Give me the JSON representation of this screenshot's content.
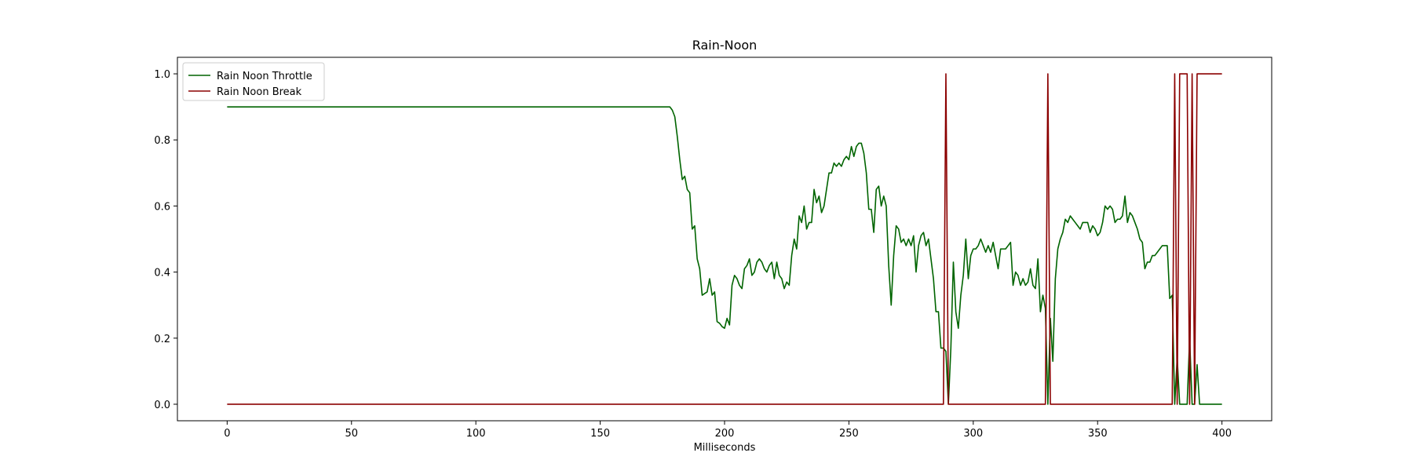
{
  "chart_data": {
    "type": "line",
    "title": "Rain-Noon",
    "xlabel": "Milliseconds",
    "ylabel": "",
    "xlim": [
      -20,
      420
    ],
    "ylim": [
      -0.05,
      1.05
    ],
    "xticks": [
      0,
      50,
      100,
      150,
      200,
      250,
      300,
      350,
      400
    ],
    "yticks": [
      0.0,
      0.2,
      0.4,
      0.6,
      0.8,
      1.0
    ],
    "xtick_labels": [
      "0",
      "50",
      "100",
      "150",
      "200",
      "250",
      "300",
      "350",
      "400"
    ],
    "ytick_labels": [
      "0.0",
      "0.2",
      "0.4",
      "0.6",
      "0.8",
      "1.0"
    ],
    "grid": false,
    "legend_position": "top-left",
    "series": [
      {
        "name": "Rain Noon Throttle",
        "color": "#006400",
        "points": [
          [
            0,
            0.9
          ],
          [
            50,
            0.9
          ],
          [
            100,
            0.9
          ],
          [
            150,
            0.9
          ],
          [
            175,
            0.9
          ],
          [
            178,
            0.9
          ],
          [
            179,
            0.89
          ],
          [
            180,
            0.87
          ],
          [
            181,
            0.81
          ],
          [
            182,
            0.74
          ],
          [
            183,
            0.68
          ],
          [
            184,
            0.69
          ],
          [
            185,
            0.65
          ],
          [
            186,
            0.64
          ],
          [
            187,
            0.53
          ],
          [
            188,
            0.54
          ],
          [
            189,
            0.44
          ],
          [
            190,
            0.41
          ],
          [
            191,
            0.33
          ],
          [
            192,
            0.335
          ],
          [
            193,
            0.34
          ],
          [
            194,
            0.38
          ],
          [
            195,
            0.33
          ],
          [
            196,
            0.34
          ],
          [
            197,
            0.25
          ],
          [
            198,
            0.245
          ],
          [
            199,
            0.235
          ],
          [
            200,
            0.23
          ],
          [
            201,
            0.26
          ],
          [
            202,
            0.24
          ],
          [
            203,
            0.36
          ],
          [
            204,
            0.39
          ],
          [
            205,
            0.38
          ],
          [
            206,
            0.36
          ],
          [
            207,
            0.35
          ],
          [
            208,
            0.41
          ],
          [
            209,
            0.42
          ],
          [
            210,
            0.44
          ],
          [
            211,
            0.39
          ],
          [
            212,
            0.4
          ],
          [
            213,
            0.43
          ],
          [
            214,
            0.44
          ],
          [
            215,
            0.43
          ],
          [
            216,
            0.41
          ],
          [
            217,
            0.4
          ],
          [
            218,
            0.42
          ],
          [
            219,
            0.43
          ],
          [
            220,
            0.38
          ],
          [
            221,
            0.43
          ],
          [
            222,
            0.39
          ],
          [
            223,
            0.38
          ],
          [
            224,
            0.35
          ],
          [
            225,
            0.37
          ],
          [
            226,
            0.36
          ],
          [
            227,
            0.45
          ],
          [
            228,
            0.5
          ],
          [
            229,
            0.47
          ],
          [
            230,
            0.57
          ],
          [
            231,
            0.55
          ],
          [
            232,
            0.6
          ],
          [
            233,
            0.53
          ],
          [
            234,
            0.55
          ],
          [
            235,
            0.55
          ],
          [
            236,
            0.65
          ],
          [
            237,
            0.61
          ],
          [
            238,
            0.63
          ],
          [
            239,
            0.58
          ],
          [
            240,
            0.6
          ],
          [
            241,
            0.65
          ],
          [
            242,
            0.7
          ],
          [
            243,
            0.7
          ],
          [
            244,
            0.73
          ],
          [
            245,
            0.72
          ],
          [
            246,
            0.73
          ],
          [
            247,
            0.72
          ],
          [
            248,
            0.74
          ],
          [
            249,
            0.75
          ],
          [
            250,
            0.74
          ],
          [
            251,
            0.78
          ],
          [
            252,
            0.75
          ],
          [
            253,
            0.78
          ],
          [
            254,
            0.79
          ],
          [
            255,
            0.79
          ],
          [
            256,
            0.76
          ],
          [
            257,
            0.7
          ],
          [
            258,
            0.59
          ],
          [
            259,
            0.59
          ],
          [
            260,
            0.52
          ],
          [
            261,
            0.65
          ],
          [
            262,
            0.66
          ],
          [
            263,
            0.6
          ],
          [
            264,
            0.63
          ],
          [
            265,
            0.6
          ],
          [
            266,
            0.42
          ],
          [
            267,
            0.3
          ],
          [
            268,
            0.45
          ],
          [
            269,
            0.54
          ],
          [
            270,
            0.53
          ],
          [
            271,
            0.49
          ],
          [
            272,
            0.5
          ],
          [
            273,
            0.48
          ],
          [
            274,
            0.5
          ],
          [
            275,
            0.48
          ],
          [
            276,
            0.51
          ],
          [
            277,
            0.4
          ],
          [
            278,
            0.48
          ],
          [
            279,
            0.51
          ],
          [
            280,
            0.52
          ],
          [
            281,
            0.48
          ],
          [
            282,
            0.5
          ],
          [
            283,
            0.44
          ],
          [
            284,
            0.38
          ],
          [
            285,
            0.28
          ],
          [
            286,
            0.28
          ],
          [
            287,
            0.17
          ],
          [
            288,
            0.17
          ],
          [
            289,
            0.16
          ],
          [
            290,
            0.0
          ],
          [
            291,
            0.17
          ],
          [
            292,
            0.43
          ],
          [
            293,
            0.28
          ],
          [
            294,
            0.23
          ],
          [
            295,
            0.33
          ],
          [
            296,
            0.39
          ],
          [
            297,
            0.5
          ],
          [
            298,
            0.38
          ],
          [
            299,
            0.45
          ],
          [
            300,
            0.47
          ],
          [
            301,
            0.47
          ],
          [
            302,
            0.48
          ],
          [
            303,
            0.5
          ],
          [
            304,
            0.48
          ],
          [
            305,
            0.46
          ],
          [
            306,
            0.48
          ],
          [
            307,
            0.46
          ],
          [
            308,
            0.49
          ],
          [
            309,
            0.45
          ],
          [
            310,
            0.41
          ],
          [
            311,
            0.47
          ],
          [
            312,
            0.47
          ],
          [
            313,
            0.47
          ],
          [
            314,
            0.48
          ],
          [
            315,
            0.49
          ],
          [
            316,
            0.36
          ],
          [
            317,
            0.4
          ],
          [
            318,
            0.39
          ],
          [
            319,
            0.36
          ],
          [
            320,
            0.38
          ],
          [
            321,
            0.36
          ],
          [
            322,
            0.37
          ],
          [
            323,
            0.41
          ],
          [
            324,
            0.36
          ],
          [
            325,
            0.35
          ],
          [
            326,
            0.44
          ],
          [
            327,
            0.28
          ],
          [
            328,
            0.33
          ],
          [
            329,
            0.29
          ],
          [
            330,
            0.0
          ],
          [
            331,
            0.26
          ],
          [
            332,
            0.13
          ],
          [
            333,
            0.38
          ],
          [
            334,
            0.47
          ],
          [
            335,
            0.5
          ],
          [
            336,
            0.52
          ],
          [
            337,
            0.56
          ],
          [
            338,
            0.55
          ],
          [
            339,
            0.57
          ],
          [
            340,
            0.56
          ],
          [
            341,
            0.55
          ],
          [
            342,
            0.54
          ],
          [
            343,
            0.53
          ],
          [
            344,
            0.55
          ],
          [
            345,
            0.55
          ],
          [
            346,
            0.55
          ],
          [
            347,
            0.52
          ],
          [
            348,
            0.54
          ],
          [
            349,
            0.53
          ],
          [
            350,
            0.51
          ],
          [
            351,
            0.52
          ],
          [
            352,
            0.55
          ],
          [
            353,
            0.6
          ],
          [
            354,
            0.59
          ],
          [
            355,
            0.6
          ],
          [
            356,
            0.59
          ],
          [
            357,
            0.55
          ],
          [
            358,
            0.56
          ],
          [
            359,
            0.56
          ],
          [
            360,
            0.57
          ],
          [
            361,
            0.63
          ],
          [
            362,
            0.55
          ],
          [
            363,
            0.58
          ],
          [
            364,
            0.57
          ],
          [
            365,
            0.55
          ],
          [
            366,
            0.53
          ],
          [
            367,
            0.5
          ],
          [
            368,
            0.49
          ],
          [
            369,
            0.41
          ],
          [
            370,
            0.43
          ],
          [
            371,
            0.43
          ],
          [
            372,
            0.45
          ],
          [
            373,
            0.45
          ],
          [
            374,
            0.46
          ],
          [
            375,
            0.47
          ],
          [
            376,
            0.48
          ],
          [
            377,
            0.48
          ],
          [
            378,
            0.48
          ],
          [
            379,
            0.32
          ],
          [
            380,
            0.33
          ],
          [
            381,
            0.0
          ],
          [
            382,
            0.14
          ],
          [
            383,
            0.0
          ],
          [
            384,
            0.0
          ],
          [
            385,
            0.0
          ],
          [
            386,
            0.0
          ],
          [
            387,
            0.2
          ],
          [
            388,
            0.0
          ],
          [
            389,
            0.0
          ],
          [
            390,
            0.12
          ],
          [
            391,
            0.0
          ],
          [
            395,
            0.0
          ],
          [
            400,
            0.0
          ]
        ]
      },
      {
        "name": "Rain Noon Break",
        "color": "#8b0000",
        "points": [
          [
            0,
            0.0
          ],
          [
            288,
            0.0
          ],
          [
            289,
            1.0
          ],
          [
            290,
            0.0
          ],
          [
            329,
            0.0
          ],
          [
            330,
            1.0
          ],
          [
            331,
            0.0
          ],
          [
            380,
            0.0
          ],
          [
            381,
            1.0
          ],
          [
            382,
            0.0
          ],
          [
            383,
            1.0
          ],
          [
            386,
            1.0
          ],
          [
            387,
            0.0
          ],
          [
            388,
            1.0
          ],
          [
            389,
            0.0
          ],
          [
            390,
            1.0
          ],
          [
            400,
            1.0
          ]
        ]
      }
    ]
  }
}
